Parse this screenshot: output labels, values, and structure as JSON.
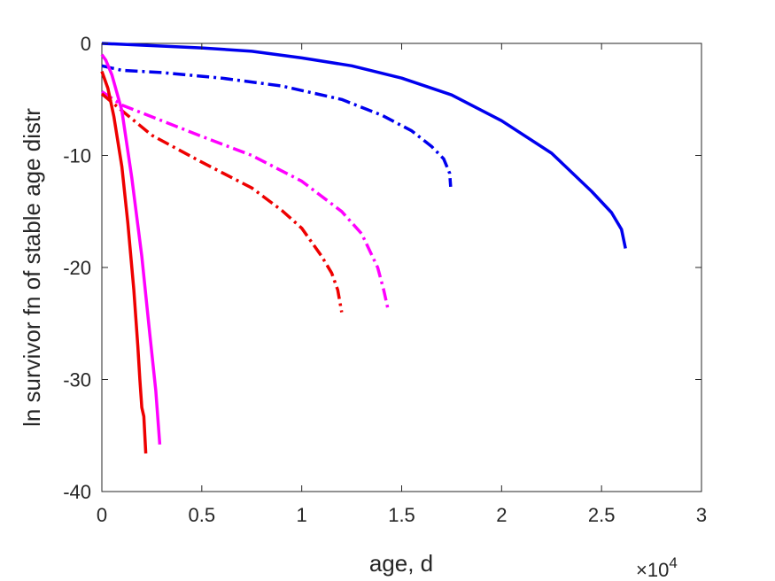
{
  "chart_data": {
    "type": "line",
    "xlabel": "age, d",
    "ylabel": "ln survivor fn of stable age distr",
    "x_multiplier_label": "×10",
    "x_multiplier_exponent": "4",
    "xlim": [
      0,
      3
    ],
    "ylim": [
      -40,
      0
    ],
    "x_ticks": [
      "0",
      "0.5",
      "1",
      "1.5",
      "2",
      "2.5",
      "3"
    ],
    "y_ticks": [
      "0",
      "-10",
      "-20",
      "-30",
      "-40"
    ],
    "x_tick_values": [
      0,
      0.5,
      1,
      1.5,
      2,
      2.5,
      3
    ],
    "y_tick_values": [
      0,
      -10,
      -20,
      -30,
      -40
    ],
    "grid": false,
    "series": [
      {
        "color": "#0000ee",
        "style": "solid",
        "points": [
          [
            0,
            0
          ],
          [
            0.25,
            -0.2
          ],
          [
            0.5,
            -0.4
          ],
          [
            0.75,
            -0.7
          ],
          [
            1.0,
            -1.3
          ],
          [
            1.25,
            -2.0
          ],
          [
            1.5,
            -3.1
          ],
          [
            1.75,
            -4.6
          ],
          [
            2.0,
            -6.9
          ],
          [
            2.25,
            -9.8
          ],
          [
            2.45,
            -13.2
          ],
          [
            2.55,
            -15.1
          ],
          [
            2.6,
            -16.6
          ],
          [
            2.62,
            -18.3
          ]
        ]
      },
      {
        "color": "#0000ee",
        "style": "dashdot",
        "points": [
          [
            0,
            -2.0
          ],
          [
            0.1,
            -2.4
          ],
          [
            0.3,
            -2.6
          ],
          [
            0.6,
            -3.1
          ],
          [
            0.9,
            -3.8
          ],
          [
            1.2,
            -5.0
          ],
          [
            1.4,
            -6.4
          ],
          [
            1.55,
            -7.8
          ],
          [
            1.65,
            -9.2
          ],
          [
            1.71,
            -10.3
          ],
          [
            1.74,
            -11.6
          ],
          [
            1.745,
            -12.8
          ]
        ]
      },
      {
        "color": "#ff00ff",
        "style": "dashdot",
        "points": [
          [
            0,
            -4.3
          ],
          [
            0.1,
            -5.5
          ],
          [
            0.3,
            -6.9
          ],
          [
            0.5,
            -8.3
          ],
          [
            0.75,
            -10.0
          ],
          [
            1.0,
            -12.3
          ],
          [
            1.2,
            -15.0
          ],
          [
            1.3,
            -17.0
          ],
          [
            1.38,
            -20.0
          ],
          [
            1.41,
            -22.0
          ],
          [
            1.43,
            -23.6
          ]
        ]
      },
      {
        "color": "#ee0000",
        "style": "dashdot",
        "points": [
          [
            0,
            -4.5
          ],
          [
            0.1,
            -6.0
          ],
          [
            0.25,
            -8.2
          ],
          [
            0.5,
            -10.6
          ],
          [
            0.75,
            -12.9
          ],
          [
            0.9,
            -14.9
          ],
          [
            1.0,
            -16.5
          ],
          [
            1.1,
            -19.0
          ],
          [
            1.15,
            -20.5
          ],
          [
            1.18,
            -22.0
          ],
          [
            1.2,
            -24.0
          ]
        ]
      },
      {
        "color": "#ff00ff",
        "style": "solid",
        "points": [
          [
            0,
            -1.0
          ],
          [
            0.02,
            -1.5
          ],
          [
            0.05,
            -2.8
          ],
          [
            0.1,
            -6.0
          ],
          [
            0.15,
            -12.0
          ],
          [
            0.2,
            -19.0
          ],
          [
            0.24,
            -26.0
          ],
          [
            0.27,
            -31.0
          ],
          [
            0.29,
            -35.8
          ]
        ]
      },
      {
        "color": "#ee0000",
        "style": "solid",
        "points": [
          [
            0,
            -2.5
          ],
          [
            0.03,
            -4.0
          ],
          [
            0.06,
            -6.5
          ],
          [
            0.1,
            -11.0
          ],
          [
            0.13,
            -16.0
          ],
          [
            0.16,
            -22.0
          ],
          [
            0.18,
            -27.0
          ],
          [
            0.19,
            -30.0
          ],
          [
            0.2,
            -32.5
          ],
          [
            0.21,
            -33.3
          ],
          [
            0.22,
            -36.6
          ]
        ]
      }
    ]
  }
}
